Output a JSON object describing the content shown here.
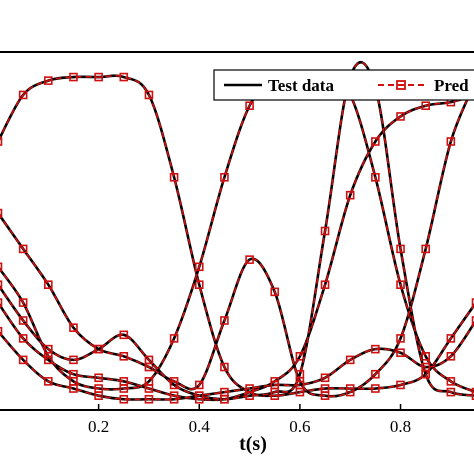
{
  "chart_data": {
    "type": "line",
    "xlabel": "t(s)",
    "ylabel": "",
    "xlim": [
      0.0,
      0.95
    ],
    "ylim": [
      0.0,
      1.0
    ],
    "xticks": [
      0.2,
      0.4,
      0.6,
      0.8
    ],
    "xtick_labels": [
      "0.2",
      "0.4",
      "0.6",
      "0.8"
    ],
    "legend": {
      "position": "top-right",
      "entries": [
        {
          "label": "Test data",
          "style": "solid-black"
        },
        {
          "label": "Pred",
          "style": "dashed-red-square-markers"
        }
      ]
    },
    "colors": {
      "test": "#000000",
      "pred": "#d01010"
    },
    "series": [
      {
        "x": [
          0.0,
          0.05,
          0.1,
          0.15,
          0.2,
          0.25,
          0.3,
          0.35,
          0.4,
          0.45,
          0.5,
          0.55,
          0.6,
          0.65,
          0.7,
          0.75,
          0.8,
          0.85,
          0.9,
          0.95
        ],
        "y": [
          0.75,
          0.88,
          0.92,
          0.93,
          0.93,
          0.93,
          0.88,
          0.65,
          0.35,
          0.12,
          0.05,
          0.04,
          0.05,
          0.06,
          0.06,
          0.06,
          0.07,
          0.1,
          0.2,
          0.3
        ]
      },
      {
        "x": [
          0.0,
          0.05,
          0.1,
          0.15,
          0.2,
          0.25,
          0.3,
          0.35,
          0.4,
          0.45,
          0.5,
          0.55,
          0.6,
          0.65,
          0.7,
          0.75,
          0.8,
          0.85,
          0.9,
          0.95
        ],
        "y": [
          0.4,
          0.3,
          0.15,
          0.08,
          0.06,
          0.06,
          0.08,
          0.2,
          0.4,
          0.65,
          0.85,
          0.93,
          0.93,
          0.93,
          0.88,
          0.65,
          0.35,
          0.15,
          0.08,
          0.05
        ]
      },
      {
        "x": [
          0.0,
          0.05,
          0.1,
          0.15,
          0.2,
          0.25,
          0.3,
          0.35,
          0.4,
          0.45,
          0.5,
          0.55,
          0.6,
          0.65,
          0.7,
          0.75,
          0.8,
          0.85,
          0.9,
          0.95
        ],
        "y": [
          0.55,
          0.45,
          0.35,
          0.23,
          0.17,
          0.15,
          0.12,
          0.08,
          0.07,
          0.25,
          0.42,
          0.33,
          0.08,
          0.04,
          0.05,
          0.1,
          0.2,
          0.45,
          0.75,
          0.92
        ]
      },
      {
        "x": [
          0.0,
          0.05,
          0.1,
          0.15,
          0.2,
          0.25,
          0.3,
          0.35,
          0.4,
          0.45,
          0.5,
          0.55,
          0.6,
          0.65,
          0.7,
          0.75,
          0.8,
          0.85,
          0.9,
          0.95
        ],
        "y": [
          0.3,
          0.2,
          0.14,
          0.1,
          0.09,
          0.08,
          0.06,
          0.04,
          0.03,
          0.03,
          0.05,
          0.08,
          0.15,
          0.35,
          0.6,
          0.75,
          0.82,
          0.85,
          0.86,
          0.88
        ]
      },
      {
        "x": [
          0.0,
          0.05,
          0.1,
          0.15,
          0.2,
          0.25,
          0.3,
          0.35,
          0.4,
          0.45,
          0.5,
          0.55,
          0.6,
          0.65,
          0.7,
          0.75,
          0.8,
          0.85,
          0.9,
          0.95
        ],
        "y": [
          0.35,
          0.25,
          0.17,
          0.14,
          0.17,
          0.21,
          0.14,
          0.07,
          0.04,
          0.03,
          0.04,
          0.05,
          0.1,
          0.5,
          0.93,
          0.9,
          0.45,
          0.1,
          0.05,
          0.04
        ]
      },
      {
        "x": [
          0.0,
          0.05,
          0.1,
          0.15,
          0.2,
          0.25,
          0.3,
          0.35,
          0.4,
          0.45,
          0.5,
          0.55,
          0.6,
          0.65,
          0.7,
          0.75,
          0.8,
          0.85,
          0.9,
          0.95
        ],
        "y": [
          0.22,
          0.14,
          0.08,
          0.06,
          0.04,
          0.03,
          0.03,
          0.03,
          0.04,
          0.05,
          0.06,
          0.07,
          0.07,
          0.09,
          0.14,
          0.17,
          0.16,
          0.12,
          0.15,
          0.25
        ]
      }
    ]
  }
}
